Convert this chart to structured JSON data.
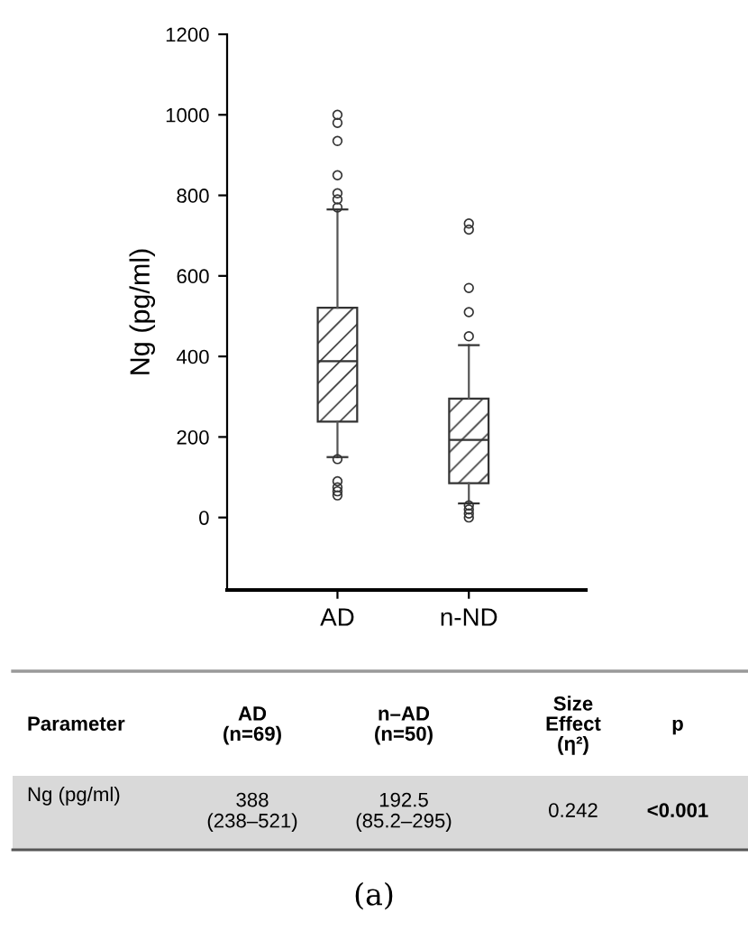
{
  "chart_data": {
    "type": "box",
    "ylabel": "Ng (pg/ml)",
    "categories": [
      "AD",
      "n-ND"
    ],
    "boxes": [
      {
        "low": 150,
        "q1": 238,
        "median": 388,
        "q3": 521,
        "high": 765,
        "outliers": [
          55,
          65,
          75,
          90,
          145,
          770,
          790,
          805,
          850,
          935,
          980,
          1000
        ]
      },
      {
        "low": 35,
        "q1": 85.2,
        "median": 192.5,
        "q3": 295,
        "high": 428,
        "outliers": [
          0,
          10,
          20,
          30,
          450,
          510,
          570,
          715,
          730
        ]
      }
    ],
    "ylim": [
      -180,
      1200
    ],
    "yticks": [
      0,
      200,
      400,
      600,
      800,
      1000,
      1200
    ],
    "grid": false,
    "annotations": [
      "Parameter",
      "AD\n(n=69)",
      "n–AD\n(n=50)",
      "Size\nEffect\n(η²)",
      "p",
      "Ng (pg/ml)",
      "388\n(238–521)",
      "192.5\n(85.2–295)",
      "0.242",
      "<0.001",
      "(a)"
    ]
  }
}
